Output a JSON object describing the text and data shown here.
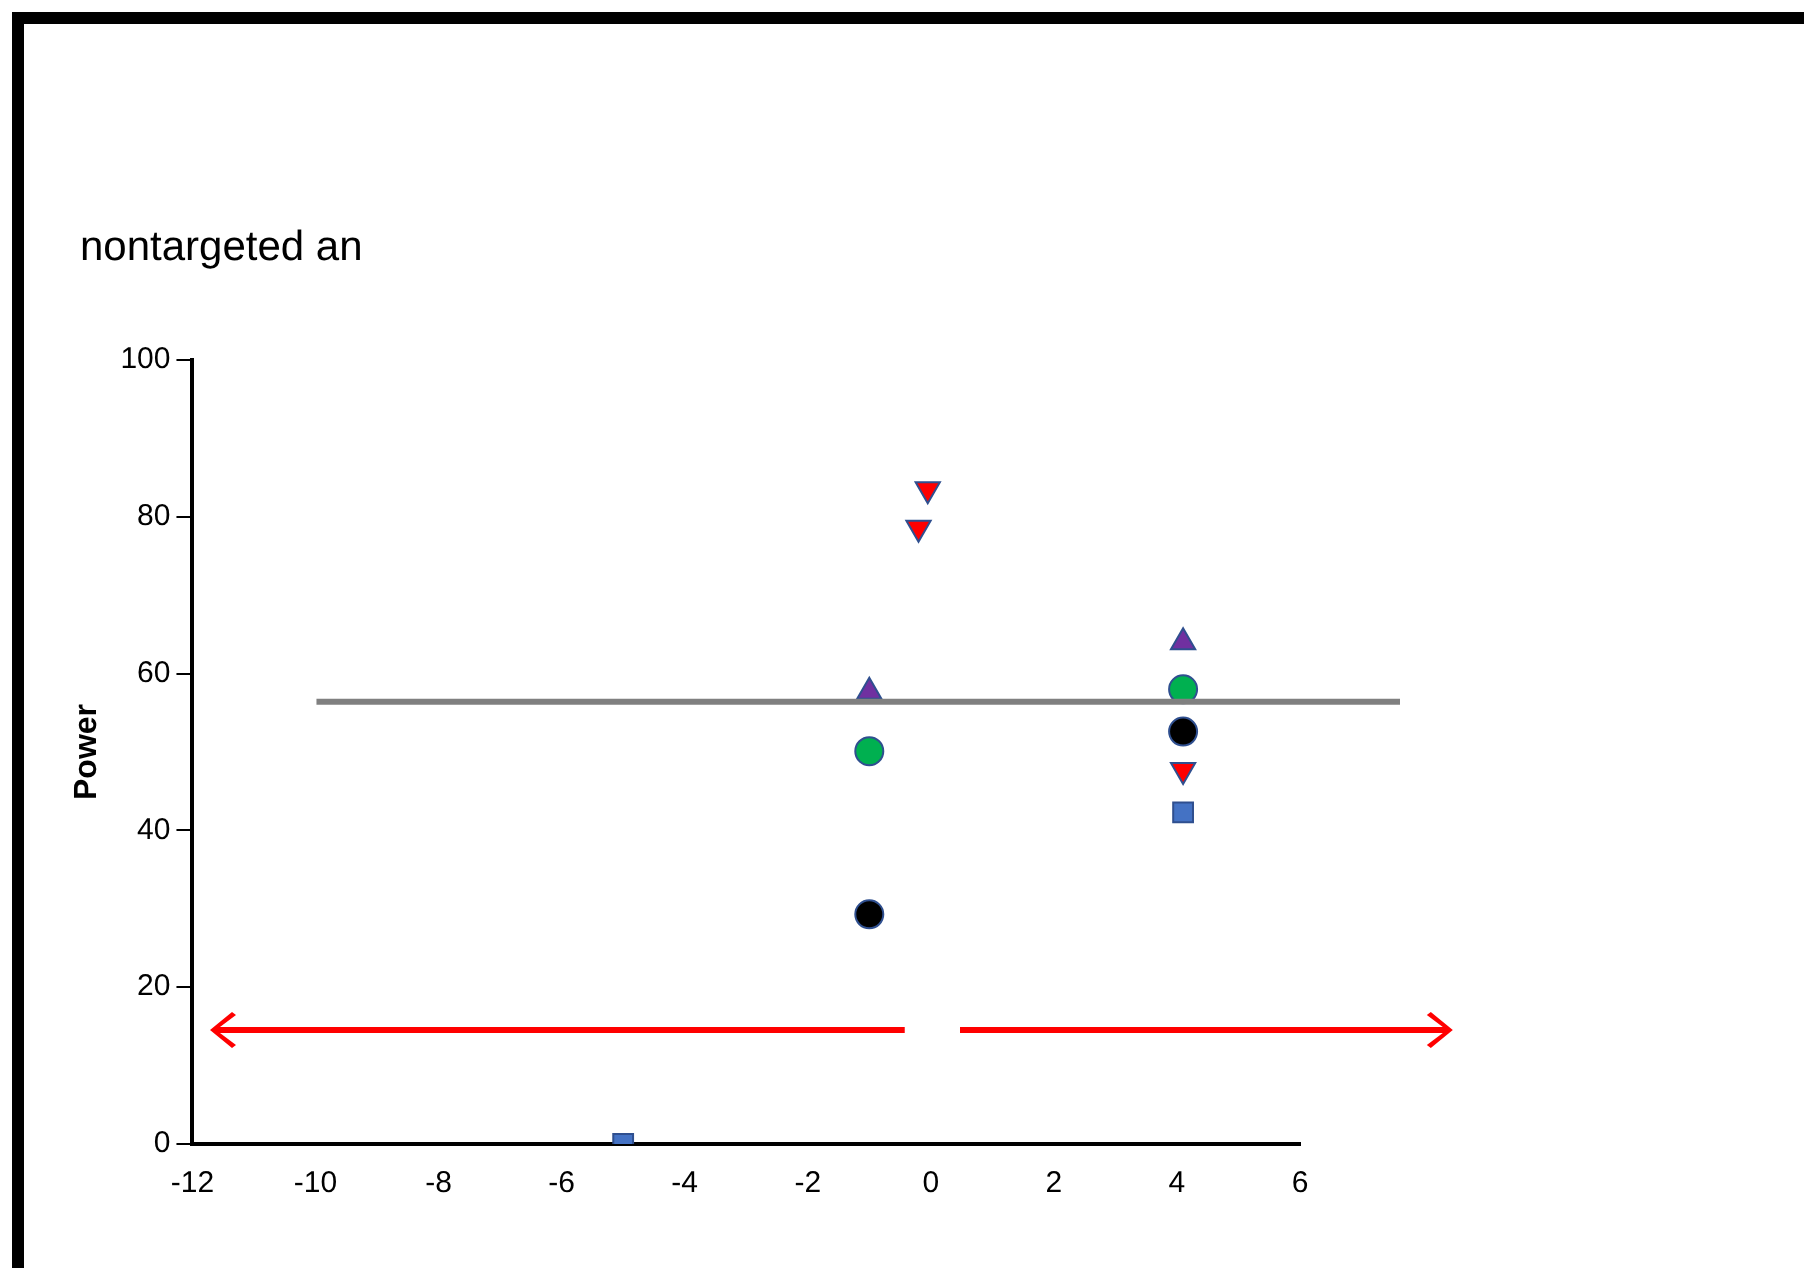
{
  "chart_data": {
    "type": "scatter",
    "ylabel": "Power",
    "annotations": [
      "nontargeted an"
    ],
    "xlim": [
      -12,
      6
    ],
    "xticks": [
      -12,
      -10,
      -8,
      -6,
      -4,
      -2,
      0,
      2,
      4,
      6
    ],
    "ylim": [
      0,
      100
    ],
    "yticks": [
      0,
      20,
      40,
      60,
      80,
      100
    ],
    "grid": false,
    "legend": false,
    "ref_lines": [
      {
        "axis": "y",
        "value": 56.4,
        "color": "#808080"
      }
    ],
    "series": [
      {
        "color": "#4472c4",
        "marker": "square",
        "x": [
          -5,
          4.1
        ],
        "values": [
          0,
          42.3
        ]
      },
      {
        "color": "#ff0000",
        "marker": "triangle-down",
        "x": [
          -0.2,
          -0.05,
          4.1
        ],
        "values": [
          78.6,
          83.5,
          47.7
        ]
      },
      {
        "color": "#7030a0",
        "marker": "triangle",
        "x": [
          -1,
          4.1
        ],
        "values": [
          57.7,
          64
        ]
      },
      {
        "color": "#00b050",
        "marker": "circle",
        "x": [
          -1,
          4.1
        ],
        "values": [
          50.1,
          58
        ]
      },
      {
        "color": "#000000",
        "marker": "circle",
        "x": [
          -1,
          4.1
        ],
        "values": [
          29.3,
          52.6
        ]
      }
    ]
  }
}
